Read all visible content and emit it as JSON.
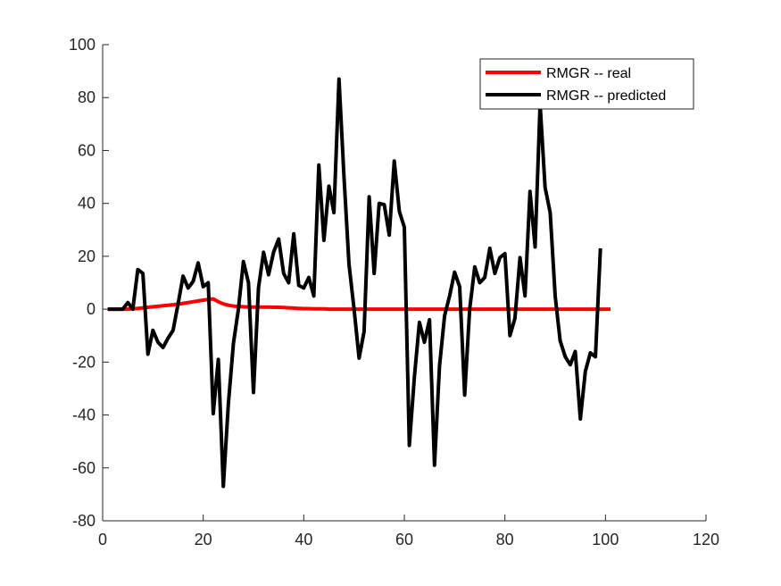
{
  "chart_data": {
    "type": "line",
    "title": "",
    "xlabel": "",
    "ylabel": "",
    "xlim": [
      0,
      120
    ],
    "ylim": [
      -80,
      100
    ],
    "xticks": [
      0,
      20,
      40,
      60,
      80,
      100,
      120
    ],
    "yticks": [
      -80,
      -60,
      -40,
      -20,
      0,
      20,
      40,
      60,
      80,
      100
    ],
    "grid": false,
    "legend_position": "top-right",
    "series": [
      {
        "name": "RMGR -- real",
        "color": "#ff0000",
        "x": [
          1,
          2,
          3,
          4,
          5,
          6,
          7,
          8,
          9,
          10,
          11,
          12,
          13,
          14,
          15,
          16,
          17,
          18,
          19,
          20,
          21,
          22,
          23,
          24,
          25,
          26,
          27,
          28,
          29,
          30,
          31,
          32,
          33,
          34,
          35,
          36,
          37,
          38,
          39,
          40,
          41,
          42,
          43,
          44,
          45,
          46,
          47,
          48,
          49,
          50,
          51,
          52,
          53,
          54,
          55,
          56,
          57,
          58,
          59,
          60,
          61,
          62,
          63,
          64,
          65,
          66,
          67,
          68,
          69,
          70,
          71,
          72,
          73,
          74,
          75,
          76,
          77,
          78,
          79,
          80,
          81,
          82,
          83,
          84,
          85,
          86,
          87,
          88,
          89,
          90,
          91,
          92,
          93,
          94,
          95,
          96,
          97,
          98,
          99,
          100,
          101
        ],
        "y": [
          0,
          0,
          0,
          0,
          0,
          0.1,
          0.3,
          0.5,
          0.7,
          0.9,
          1.1,
          1.3,
          1.5,
          1.7,
          1.9,
          2.2,
          2.5,
          2.8,
          3.1,
          3.4,
          3.7,
          3.9,
          2.8,
          2.0,
          1.5,
          1.2,
          1.0,
          0.9,
          0.8,
          0.8,
          0.8,
          0.8,
          0.8,
          0.7,
          0.7,
          0.6,
          0.5,
          0.4,
          0.3,
          0.2,
          0.2,
          0.1,
          0.1,
          0.1,
          0,
          0,
          0,
          0,
          0,
          0,
          0,
          0,
          0,
          0,
          0,
          0,
          0,
          0,
          0,
          0,
          0,
          0,
          0,
          0,
          0,
          0,
          0,
          0,
          0,
          0,
          0,
          0,
          0,
          0,
          0,
          0,
          0,
          0,
          0,
          0,
          0,
          0,
          0,
          0,
          0,
          0,
          0,
          0,
          0,
          0,
          0,
          0,
          0,
          0,
          0,
          0,
          0,
          0,
          0,
          0,
          0
        ]
      },
      {
        "name": "RMGR -- predicted",
        "color": "#000000",
        "x": [
          1,
          2,
          3,
          4,
          5,
          6,
          7,
          8,
          9,
          10,
          11,
          12,
          13,
          14,
          15,
          16,
          17,
          18,
          19,
          20,
          21,
          22,
          23,
          24,
          25,
          26,
          27,
          28,
          29,
          30,
          31,
          32,
          33,
          34,
          35,
          36,
          37,
          38,
          39,
          40,
          41,
          42,
          43,
          44,
          45,
          46,
          47,
          48,
          49,
          50,
          51,
          52,
          53,
          54,
          55,
          56,
          57,
          58,
          59,
          60,
          61,
          62,
          63,
          64,
          65,
          66,
          67,
          68,
          69,
          70,
          71,
          72,
          73,
          74,
          75,
          76,
          77,
          78,
          79,
          80,
          81,
          82,
          83,
          84,
          85,
          86,
          87,
          88,
          89,
          90,
          91,
          92,
          93,
          94,
          95,
          96,
          97,
          98,
          99
        ],
        "y": [
          0,
          0,
          0,
          0,
          2.5,
          0,
          15,
          13.5,
          -17,
          -8,
          -12.5,
          -14.5,
          -11,
          -8,
          2,
          12.5,
          8,
          10.5,
          17.5,
          8.5,
          10,
          -39.5,
          -19,
          -67,
          -36,
          -13,
          0,
          18,
          10,
          -31.5,
          8,
          21.5,
          13,
          21.5,
          26.5,
          13.5,
          10,
          28.5,
          9,
          8,
          12,
          5,
          54.5,
          26,
          46.5,
          36.5,
          87,
          50,
          17,
          0,
          -18.5,
          -8.5,
          42.5,
          13.5,
          40,
          39.5,
          28,
          56,
          37,
          31,
          -51.5,
          -25.5,
          -5,
          -12.5,
          -4,
          -59,
          -21.5,
          -2.5,
          5,
          14,
          8.5,
          -32.5,
          0,
          16,
          10,
          12,
          23,
          13.5,
          19.5,
          21,
          -10,
          -3.5,
          19.5,
          5,
          44.5,
          23.5,
          77.5,
          46,
          36.5,
          5,
          -12,
          -18,
          -21,
          -16,
          -41.5,
          -23.5,
          -16.5,
          -18,
          23
        ]
      }
    ]
  }
}
